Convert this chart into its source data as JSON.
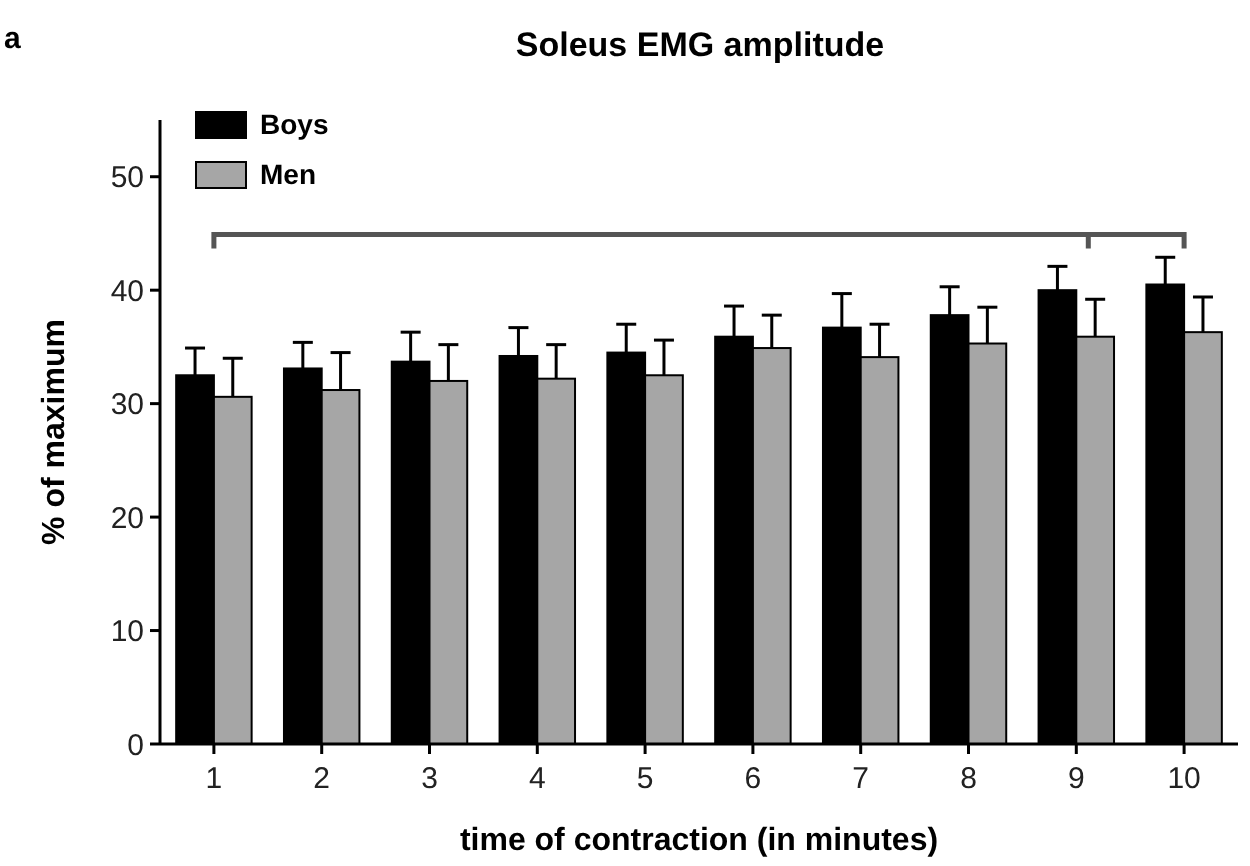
{
  "chart_data": {
    "type": "bar",
    "title": "Soleus EMG amplitude",
    "xlabel": "time of contraction (in minutes)",
    "ylabel": "% of maximum",
    "annotations": [
      "a"
    ],
    "categories": [
      "1",
      "2",
      "3",
      "4",
      "5",
      "6",
      "7",
      "8",
      "9",
      "10"
    ],
    "series": [
      {
        "name": "Boys",
        "color": "#000000",
        "values": [
          32.5,
          33.1,
          33.7,
          34.2,
          34.5,
          35.9,
          36.7,
          37.8,
          40.0,
          40.5
        ],
        "errors": [
          2.4,
          2.3,
          2.6,
          2.5,
          2.5,
          2.7,
          3.0,
          2.5,
          2.1,
          2.4
        ]
      },
      {
        "name": "Men",
        "color": "#a6a6a6",
        "values": [
          30.6,
          31.2,
          32.0,
          32.2,
          32.5,
          34.9,
          34.1,
          35.3,
          35.9,
          36.3
        ],
        "errors": [
          3.4,
          3.3,
          3.2,
          3.0,
          3.1,
          2.9,
          2.9,
          3.2,
          3.3,
          3.1
        ]
      }
    ],
    "ylim": [
      0,
      55
    ],
    "yticks": [
      0,
      10,
      20,
      30,
      40,
      50
    ],
    "legend": "top left"
  }
}
